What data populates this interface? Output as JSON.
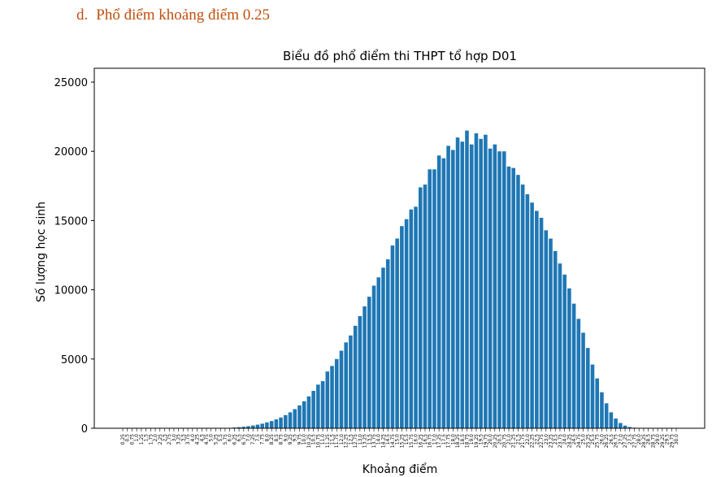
{
  "heading": {
    "number": "d.",
    "text": "Phổ điểm khoảng điểm 0.25"
  },
  "chart_data": {
    "type": "bar",
    "title": "Biểu đồ phổ điểm thi THPT tổ hợp D01",
    "xlabel": "Khoảng điểm",
    "ylabel": "Số lượng học sinh",
    "ylim": [
      0,
      26000
    ],
    "yticks": [
      "0",
      "5000",
      "10000",
      "15000",
      "20000",
      "25000"
    ],
    "bar_color": "#1f77b4",
    "categories": [
      "0.25",
      "0.5",
      "0.75",
      "1.0",
      "1.25",
      "1.5",
      "1.75",
      "2.0",
      "2.25",
      "2.5",
      "2.75",
      "3.0",
      "3.25",
      "3.5",
      "3.75",
      "4.0",
      "4.25",
      "4.5",
      "4.75",
      "5.0",
      "5.25",
      "5.5",
      "5.75",
      "6.0",
      "6.25",
      "6.5",
      "6.75",
      "7.0",
      "7.25",
      "7.5",
      "7.75",
      "8.0",
      "8.25",
      "8.5",
      "8.75",
      "9.0",
      "9.25",
      "9.5",
      "9.75",
      "10.0",
      "10.25",
      "10.5",
      "10.75",
      "11.0",
      "11.25",
      "11.5",
      "11.75",
      "12.0",
      "12.25",
      "12.5",
      "12.75",
      "13.0",
      "13.25",
      "13.5",
      "13.75",
      "14.0",
      "14.25",
      "14.5",
      "14.75",
      "15.0",
      "15.25",
      "15.5",
      "15.75",
      "16.0",
      "16.25",
      "16.5",
      "16.75",
      "17.0",
      "17.25",
      "17.5",
      "17.75",
      "18.0",
      "18.25",
      "18.5",
      "18.75",
      "19.0",
      "19.25",
      "19.5",
      "19.75",
      "20.0",
      "20.25",
      "20.5",
      "20.75",
      "21.0",
      "21.25",
      "21.5",
      "21.75",
      "22.0",
      "22.25",
      "22.5",
      "22.75",
      "23.0",
      "23.25",
      "23.5",
      "23.75",
      "24.0",
      "24.25",
      "24.5",
      "24.75",
      "25.0",
      "25.25",
      "25.5",
      "25.75",
      "26.0",
      "26.25",
      "26.5",
      "26.75",
      "27.0",
      "27.25",
      "27.5",
      "27.75",
      "28.0",
      "28.25",
      "28.5",
      "28.75",
      "29.0",
      "29.25",
      "29.5",
      "29.75",
      "30.0"
    ],
    "values": [
      0,
      0,
      0,
      0,
      0,
      0,
      0,
      0,
      0,
      0,
      0,
      0,
      0,
      0,
      0,
      0,
      0,
      0,
      0,
      0,
      0,
      10,
      20,
      30,
      50,
      80,
      110,
      150,
      200,
      260,
      330,
      420,
      520,
      640,
      780,
      950,
      1150,
      1380,
      1650,
      1950,
      2300,
      2700,
      3150,
      3400,
      4100,
      4500,
      5000,
      5600,
      6200,
      6700,
      7400,
      8100,
      8800,
      9500,
      10300,
      10900,
      11600,
      12200,
      13200,
      13700,
      14600,
      15100,
      15800,
      16000,
      17400,
      17600,
      18700,
      18700,
      19700,
      19500,
      20400,
      20100,
      21000,
      20700,
      21500,
      20500,
      21300,
      20900,
      21200,
      20200,
      20500,
      20000,
      20000,
      18900,
      18800,
      18300,
      17600,
      16900,
      16300,
      15700,
      15200,
      14300,
      13700,
      12800,
      11900,
      11100,
      10100,
      9000,
      7900,
      6900,
      5800,
      4600,
      3600,
      2600,
      1800,
      1150,
      700,
      380,
      190,
      90,
      40,
      15,
      5,
      0,
      0,
      0,
      0,
      0,
      0,
      0
    ]
  }
}
